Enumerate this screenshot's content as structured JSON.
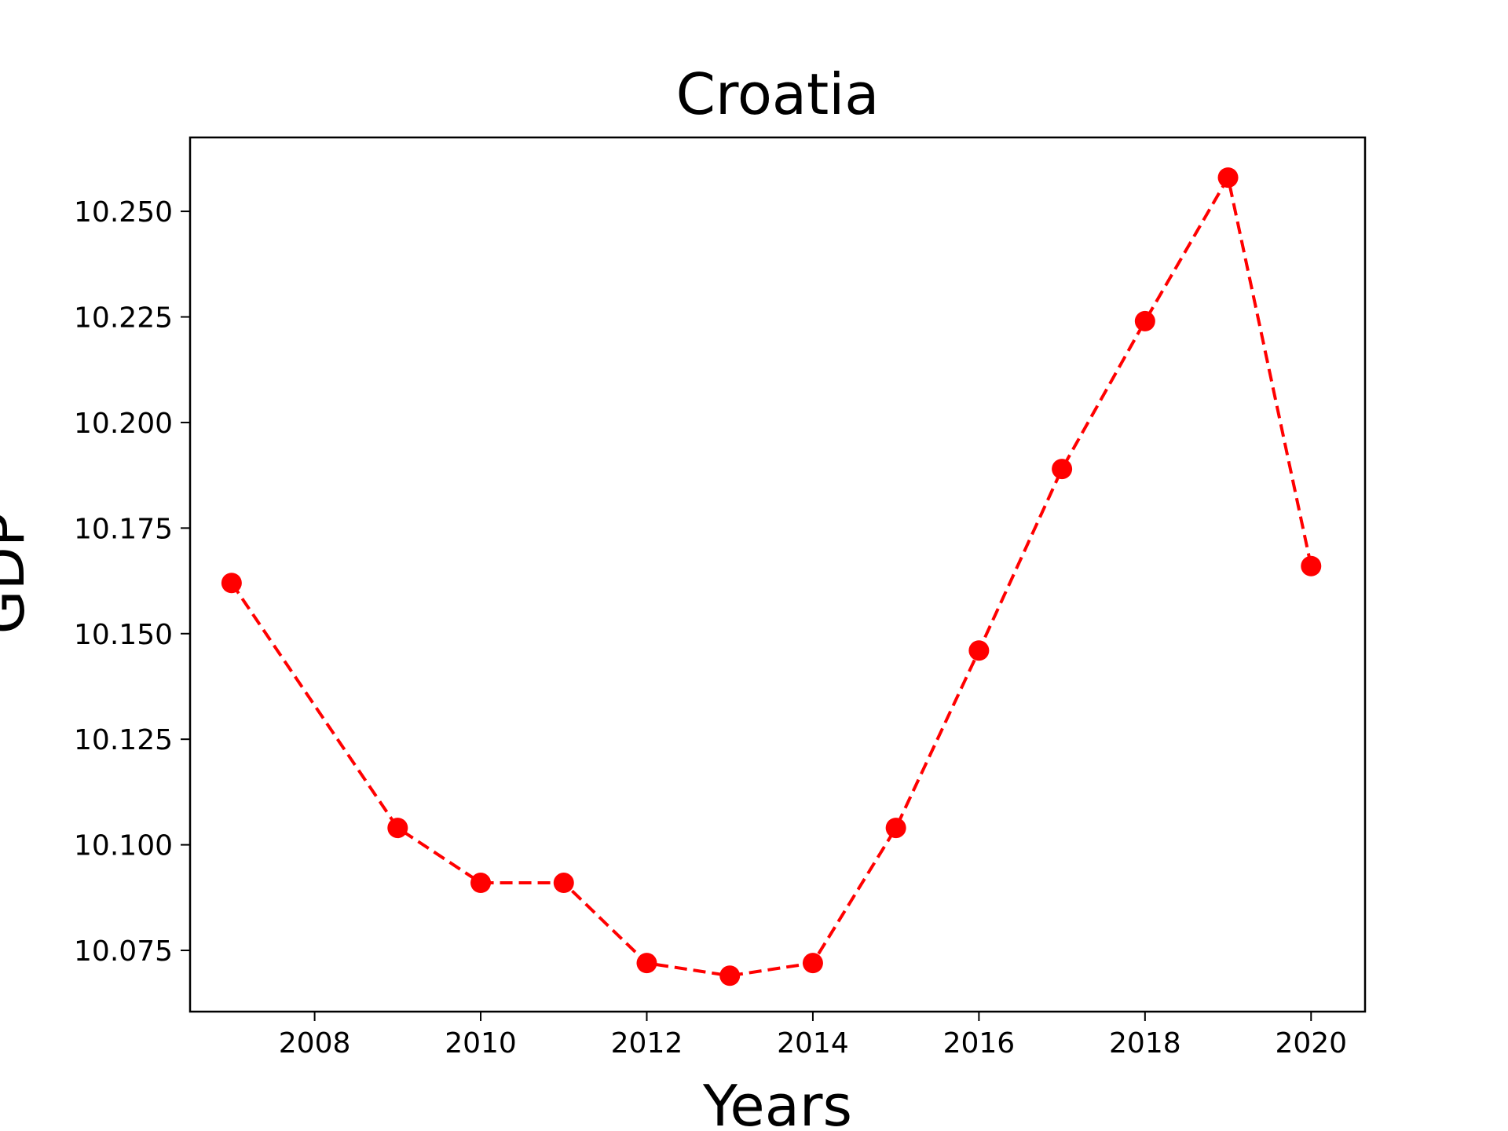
{
  "chart_data": {
    "type": "line",
    "title": "Croatia",
    "xlabel": "Years",
    "ylabel": "GDP",
    "x": [
      2007,
      2009,
      2010,
      2011,
      2012,
      2013,
      2014,
      2015,
      2016,
      2017,
      2018,
      2019,
      2020
    ],
    "series": [
      {
        "values": [
          10.162,
          10.104,
          10.091,
          10.091,
          10.072,
          10.069,
          10.072,
          10.104,
          10.146,
          10.189,
          10.224,
          10.258,
          10.166
        ],
        "color": "#ff0000",
        "line_style": "dashed",
        "marker": "circle"
      }
    ],
    "xlim": [
      2006.5,
      2020.65
    ],
    "ylim": [
      10.0605,
      10.2675
    ],
    "xticks": [
      2008,
      2010,
      2012,
      2014,
      2016,
      2018,
      2020
    ],
    "xtick_labels": [
      "2008",
      "2010",
      "2012",
      "2014",
      "2016",
      "2018",
      "2020"
    ],
    "yticks": [
      10.075,
      10.1,
      10.125,
      10.15,
      10.175,
      10.2,
      10.225,
      10.25
    ],
    "ytick_labels": [
      "10.075",
      "10.100",
      "10.125",
      "10.150",
      "10.175",
      "10.200",
      "10.225",
      "10.250"
    ],
    "grid": false,
    "legend": "none"
  }
}
